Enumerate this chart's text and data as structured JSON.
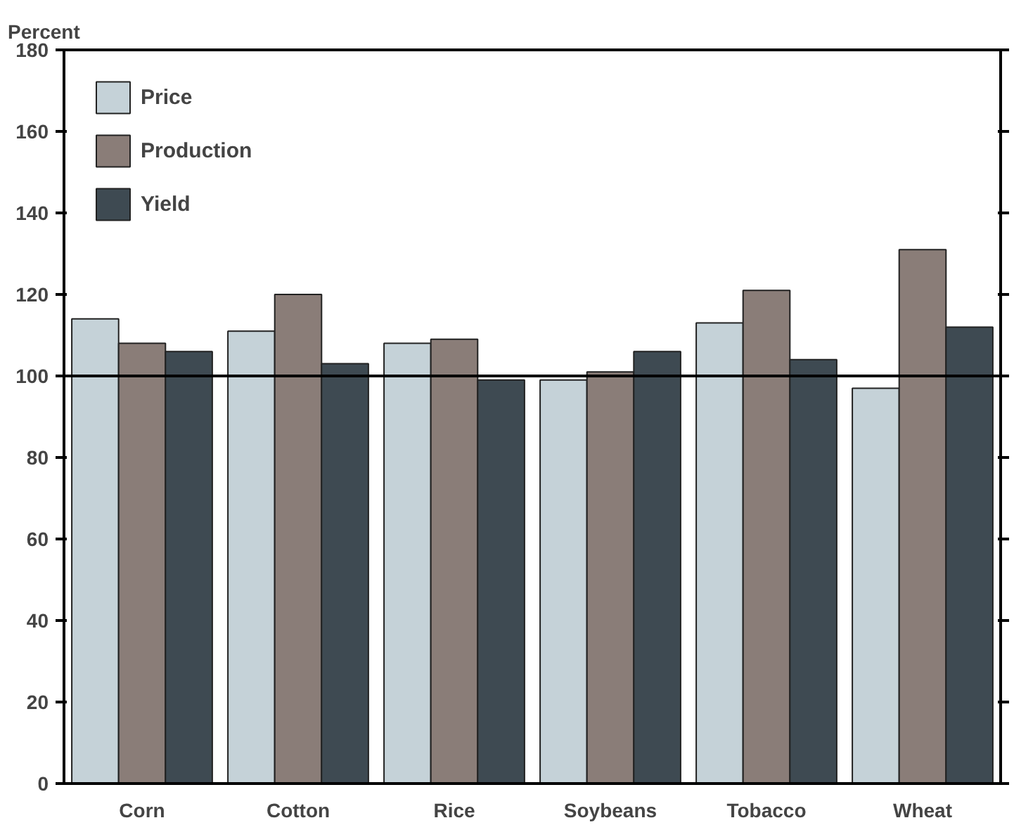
{
  "chart_data": {
    "type": "bar",
    "ylabel": "Percent",
    "categories": [
      "Corn",
      "Cotton",
      "Rice",
      "Soybeans",
      "Tobacco",
      "Wheat"
    ],
    "series": [
      {
        "name": "Price",
        "color": "#c5d2d8",
        "values": [
          114,
          111,
          108,
          99,
          113,
          97
        ]
      },
      {
        "name": "Production",
        "color": "#8a7d78",
        "values": [
          108,
          120,
          109,
          101,
          121,
          131
        ]
      },
      {
        "name": "Yield",
        "color": "#3e4a52",
        "values": [
          106,
          103,
          99,
          106,
          104,
          112
        ]
      }
    ],
    "ylim": [
      0,
      180
    ],
    "yticks": [
      0,
      20,
      40,
      60,
      80,
      100,
      120,
      140,
      160,
      180
    ],
    "ref_lines": [
      {
        "axis": "y",
        "value": 100,
        "color": "#000000"
      }
    ],
    "grid": false,
    "legend": "top left"
  }
}
